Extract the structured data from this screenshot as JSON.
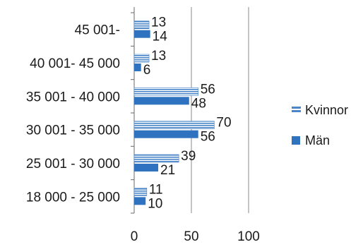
{
  "chart_data": {
    "type": "bar",
    "orientation": "horizontal",
    "categories": [
      "18 000 - 25 000",
      "25 001 - 30 000",
      "30 001 - 35 000",
      "35 001 - 40 000",
      "40 001- 45 000",
      "45 001-"
    ],
    "series": [
      {
        "name": "Kvinnor",
        "values": [
          11,
          39,
          70,
          56,
          13,
          13
        ],
        "color": "#4a86c8",
        "pattern": "striped"
      },
      {
        "name": "Män",
        "values": [
          10,
          21,
          56,
          48,
          6,
          14
        ],
        "color": "#2f72c0",
        "pattern": "solid"
      }
    ],
    "x_ticks": [
      "0",
      "50",
      "100"
    ],
    "xlim": [
      0,
      100
    ],
    "grid": true,
    "legend_position": "right",
    "title": "",
    "xlabel": "",
    "ylabel": ""
  }
}
